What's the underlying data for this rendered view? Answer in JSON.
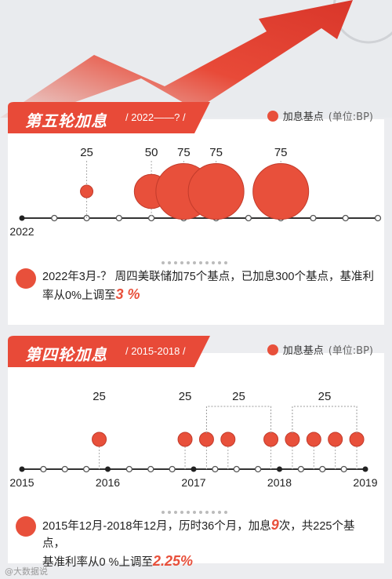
{
  "section5": {
    "title": "第五轮加息",
    "range": "/ 2022——? /",
    "legend_label": "加息基点",
    "legend_unit": "(单位:BP)",
    "note_prefix": "2022年3月-？ 周四美联储加75个基点，已加息300个基点，基准利率从0%上调至",
    "note_highlight": "3 %",
    "chart_data": {
      "type": "bubble-timeline",
      "x_labels": [
        {
          "label": "2022",
          "index": 0
        }
      ],
      "ticks": 12,
      "points": [
        {
          "index": 2,
          "value": 25,
          "label": "25"
        },
        {
          "index": 4,
          "value": 50,
          "label": "50"
        },
        {
          "index": 5,
          "value": 75,
          "label": "75"
        },
        {
          "index": 6,
          "value": 75,
          "label": "75"
        },
        {
          "index": 8,
          "value": 75,
          "label": "75"
        }
      ]
    }
  },
  "section4": {
    "title": "第四轮加息",
    "range": "/ 2015-2018 /",
    "legend_label": "加息基点",
    "legend_unit": "(单位:BP)",
    "note_prefix": "2015年12月-2018年12月，历时36个月，加息",
    "note_count": "9",
    "note_mid": "次，共225个基点，",
    "note_prefix2": "基准利率从0 %上调至",
    "note_highlight": "2.25%",
    "chart_data": {
      "type": "bubble-timeline",
      "x_labels": [
        {
          "label": "2015",
          "index": 0
        },
        {
          "label": "2016",
          "index": 4
        },
        {
          "label": "2017",
          "index": 8
        },
        {
          "label": "2018",
          "index": 12
        },
        {
          "label": "2019",
          "index": 16
        }
      ],
      "ticks": 17,
      "points": [
        {
          "index": 3.6,
          "value": 25
        },
        {
          "index": 7.6,
          "value": 25
        },
        {
          "index": 8.6,
          "value": 25
        },
        {
          "index": 9.6,
          "value": 25
        },
        {
          "index": 11.6,
          "value": 25
        },
        {
          "index": 12.6,
          "value": 25
        },
        {
          "index": 13.6,
          "value": 25
        },
        {
          "index": 14.6,
          "value": 25
        },
        {
          "index": 15.6,
          "value": 25
        }
      ],
      "labels": [
        {
          "text": "25",
          "index": 3.6
        },
        {
          "text": "25",
          "index": 7.6
        },
        {
          "text": "25",
          "bracket": [
            8.6,
            11.6
          ]
        },
        {
          "text": "25",
          "bracket": [
            12.6,
            15.6
          ]
        }
      ]
    }
  },
  "watermark": "@大数据说"
}
